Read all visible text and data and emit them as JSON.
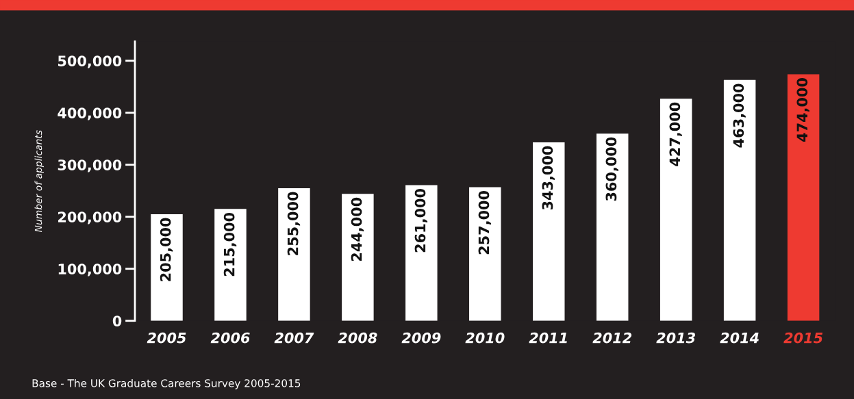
{
  "chart_data": {
    "type": "bar",
    "ylabel": "Number of applicants",
    "categories": [
      "2005",
      "2006",
      "2007",
      "2008",
      "2009",
      "2010",
      "2011",
      "2012",
      "2013",
      "2014",
      "2015"
    ],
    "values": [
      205000,
      215000,
      255000,
      244000,
      261000,
      257000,
      343000,
      360000,
      427000,
      463000,
      474000
    ],
    "value_labels": [
      "205,000",
      "215,000",
      "255,000",
      "244,000",
      "261,000",
      "257,000",
      "343,000",
      "360,000",
      "427,000",
      "463,000",
      "474,000"
    ],
    "colors": [
      "#ffffff",
      "#ffffff",
      "#ffffff",
      "#ffffff",
      "#ffffff",
      "#ffffff",
      "#ffffff",
      "#ffffff",
      "#ffffff",
      "#ffffff",
      "#ee3a31"
    ],
    "ylim": [
      0,
      537000
    ],
    "yticks": [
      {
        "value": 0,
        "label": "0"
      },
      {
        "value": 100000,
        "label": "100,000"
      },
      {
        "value": 200000,
        "label": "200,000"
      },
      {
        "value": 300000,
        "label": "300,000"
      },
      {
        "value": 400000,
        "label": "400,000"
      },
      {
        "value": 500000,
        "label": "500,000"
      }
    ],
    "grid": false,
    "legend": false,
    "annotations": [
      "Base - The UK Graduate Careers Survey 2005-2015"
    ]
  }
}
